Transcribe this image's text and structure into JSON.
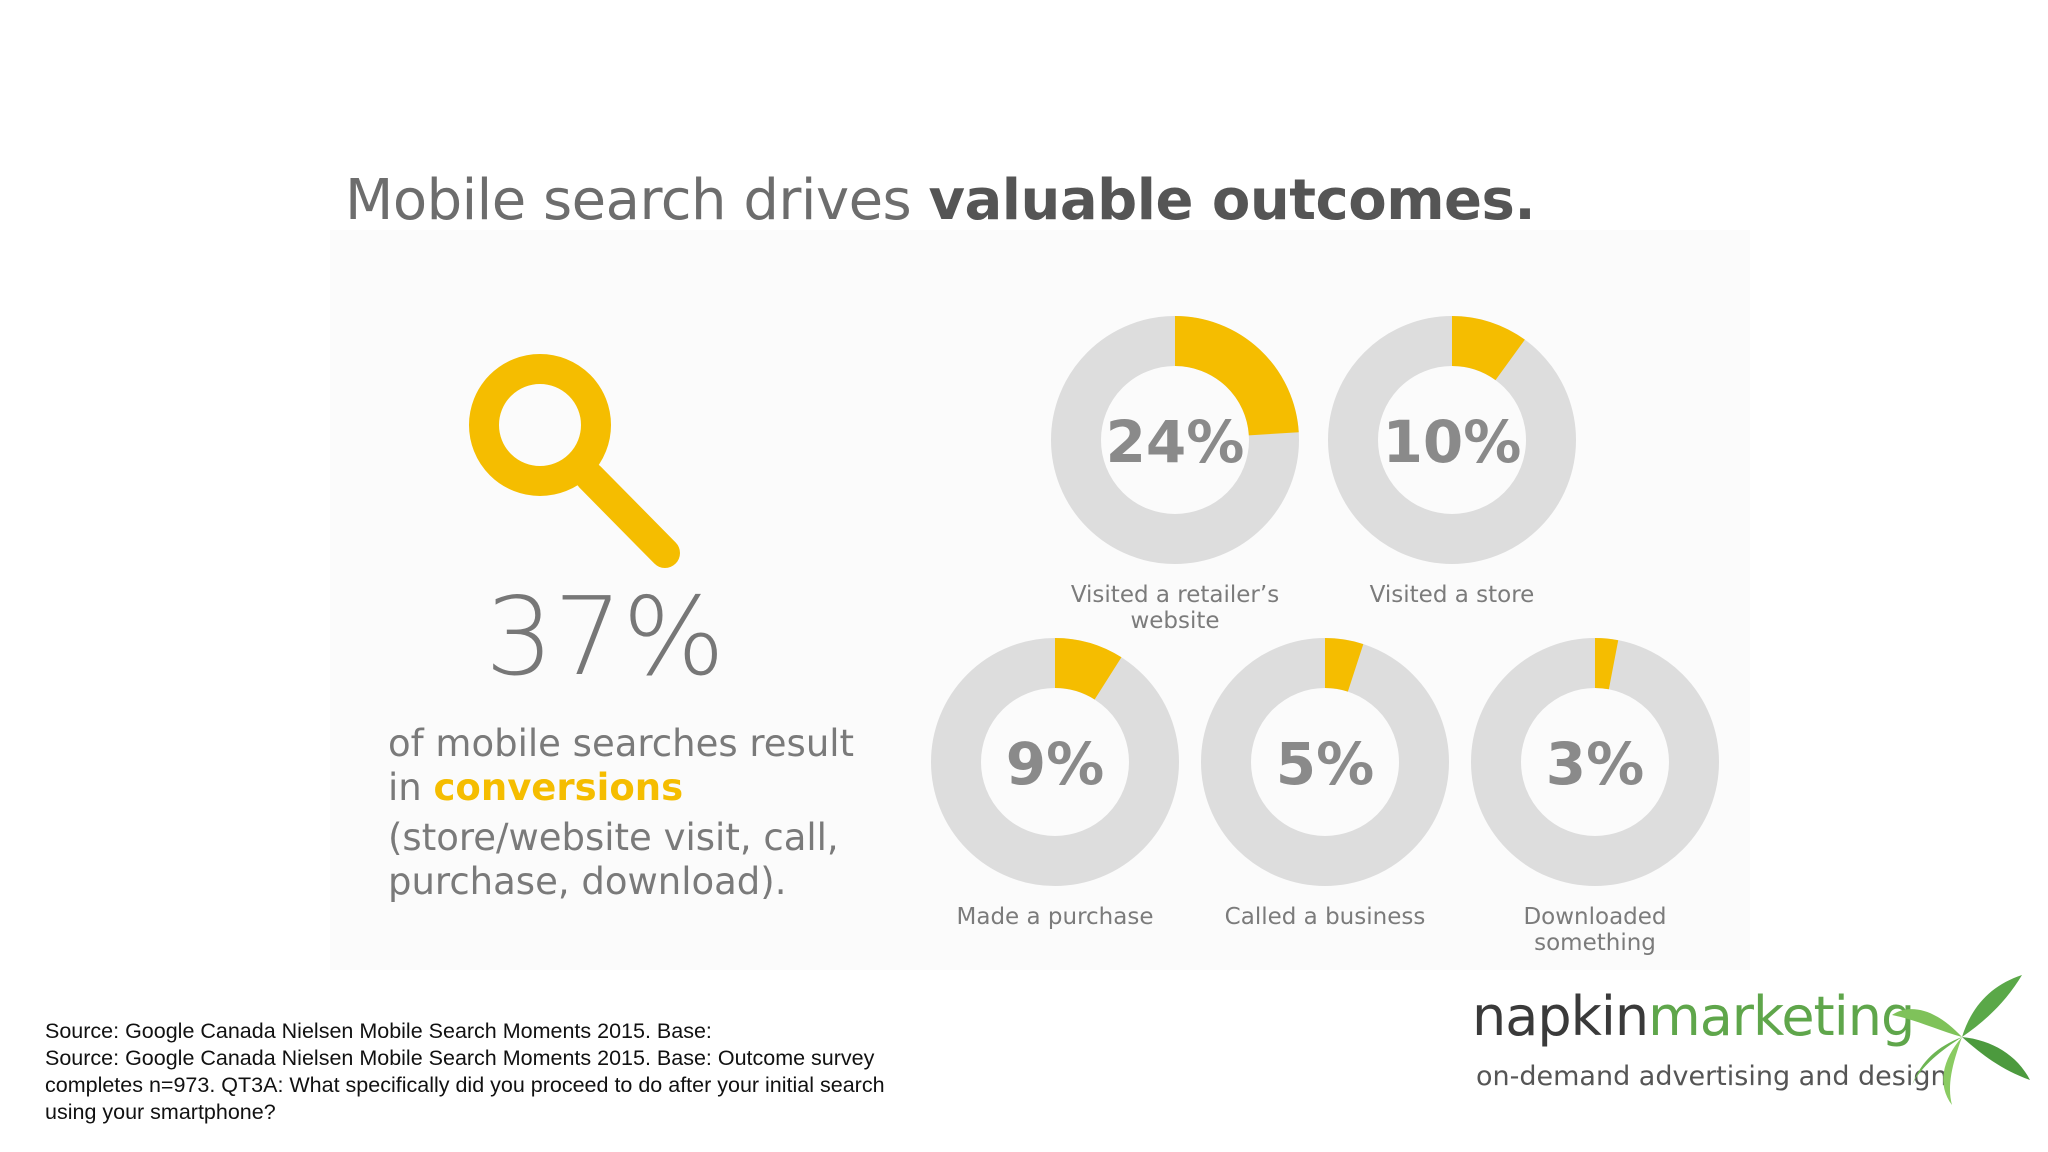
{
  "title": {
    "regular": "Mobile search drives ",
    "bold": "valuable outcomes."
  },
  "headline_stat": {
    "value": "37%",
    "line1": "of mobile searches result",
    "line2_prefix": "in ",
    "line2_highlight": "conversions",
    "detail": "(store/website visit, call, purchase, download)."
  },
  "chart_data": {
    "type": "pie",
    "series": [
      {
        "name": "Visited a retailer’s website",
        "value": 24,
        "display": "24%"
      },
      {
        "name": "Visited a store",
        "value": 10,
        "display": "10%"
      },
      {
        "name": "Made a purchase",
        "value": 9,
        "display": "9%"
      },
      {
        "name": "Called a business",
        "value": 5,
        "display": "5%"
      },
      {
        "name": "Downloaded something",
        "value": 3,
        "display": "3%"
      }
    ],
    "unit": "%",
    "max": 100
  },
  "colors": {
    "accent": "#f5bd00",
    "ring": "#dddddd",
    "number": "#8a8a8a"
  },
  "source": {
    "line1": "Source: Google Canada Nielsen Mobile Search Moments 2015. Base:",
    "line2": "Source: Google Canada Nielsen Mobile Search Moments 2015. Base: Outcome survey completes n=973. QT3A: What specifically did you proceed to do after your initial search using your smartphone?"
  },
  "logo": {
    "part1": "napkin",
    "part2": "marketing",
    "tagline": "on-demand advertising and design"
  }
}
